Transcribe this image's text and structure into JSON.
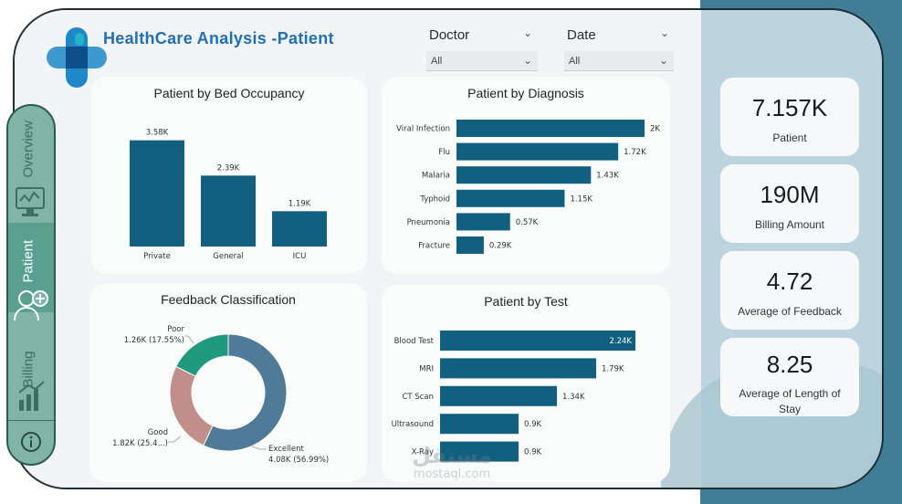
{
  "header": {
    "title": "HealthCare Analysis  -Patient"
  },
  "filters": [
    {
      "label": "Doctor",
      "value": "All"
    },
    {
      "label": "Date",
      "value": "All"
    }
  ],
  "nav": {
    "items": [
      {
        "label": "Overview",
        "icon": "monitor-icon"
      },
      {
        "label": "Patient",
        "icon": "patient-icon"
      },
      {
        "label": "Billing",
        "icon": "billing-icon"
      }
    ],
    "info_icon": "info-icon"
  },
  "kpis": [
    {
      "value": "7.157K",
      "label": "Patient"
    },
    {
      "value": "190M",
      "label": "Billing Amount"
    },
    {
      "value": "4.72",
      "label": "Average of Feedback"
    },
    {
      "value": "8.25",
      "label": "Average of Length of Stay"
    }
  ],
  "chart_data": [
    {
      "type": "bar",
      "title": "Patient by Bed Occupancy",
      "categories": [
        "Private",
        "General",
        "ICU"
      ],
      "values": [
        3580,
        2390,
        1190
      ],
      "labels": [
        "3.58K",
        "2.39K",
        "1.19K"
      ],
      "ylim": [
        0,
        4000
      ],
      "color": "#11607f"
    },
    {
      "type": "bar",
      "orientation": "horizontal",
      "title": "Patient by Diagnosis",
      "categories": [
        "Viral Infection",
        "Flu",
        "Malaria",
        "Typhoid",
        "Pneumonia",
        "Fracture"
      ],
      "values": [
        2000,
        1720,
        1430,
        1150,
        570,
        290
      ],
      "labels": [
        "2K",
        "1.72K",
        "1.43K",
        "1.15K",
        "0.57K",
        "0.29K"
      ],
      "xlim": [
        0,
        2000
      ],
      "color": "#11607f"
    },
    {
      "type": "pie",
      "variant": "donut",
      "title": "Feedback Classification",
      "slices": [
        {
          "name": "Excellent",
          "value": 4080,
          "label": "4.08K (56.99%)",
          "color": "#4f7a98"
        },
        {
          "name": "Good",
          "value": 1820,
          "label": "1.82K (25.4...)",
          "color": "#c28e8a"
        },
        {
          "name": "Poor",
          "value": 1260,
          "label": "1.26K (17.55%)",
          "color": "#1f9a7f"
        }
      ]
    },
    {
      "type": "bar",
      "orientation": "horizontal",
      "title": "Patient by Test",
      "categories": [
        "Blood Test",
        "MRI",
        "CT Scan",
        "Ultrasound",
        "X-Ray"
      ],
      "values": [
        2240,
        1790,
        1340,
        900,
        900
      ],
      "labels": [
        "2.24K",
        "1.79K",
        "1.34K",
        "0.9K",
        "0.9K"
      ],
      "xlim": [
        0,
        2240
      ],
      "color": "#11607f"
    }
  ],
  "watermark": {
    "arabic": "مستقل",
    "latin": "mostaql.com"
  }
}
